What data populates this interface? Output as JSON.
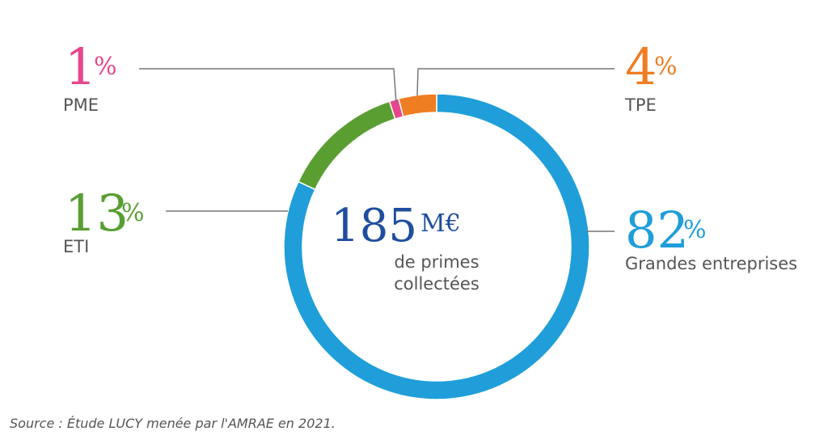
{
  "chart_data": {
    "type": "pie",
    "variant": "donut",
    "unit": "%",
    "center": {
      "value": "185",
      "unit": "M€",
      "line1": "de primes",
      "line2": "collectées"
    },
    "slices": [
      {
        "label": "Grandes entreprises",
        "value": 82,
        "color": "#1f9ed9"
      },
      {
        "label": "ETI",
        "value": 13,
        "color": "#5a9e32"
      },
      {
        "label": "PME",
        "value": 1,
        "color": "#e8468c"
      },
      {
        "label": "TPE",
        "value": 4,
        "color": "#ef7d22"
      }
    ]
  },
  "source": "Source : Étude LUCY menée par l'AMRAE en 2021.",
  "colors": {
    "leader": "#777777",
    "text": "#555555",
    "center": "#1f4e9e"
  }
}
